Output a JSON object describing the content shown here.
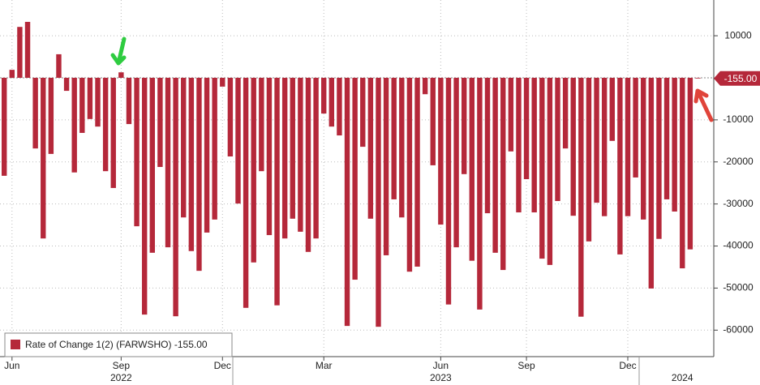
{
  "chart_data": {
    "type": "bar",
    "categories": [
      null,
      "Jun",
      null,
      null,
      null,
      null,
      null,
      null,
      null,
      null,
      null,
      null,
      null,
      null,
      null,
      "Sep",
      null,
      null,
      null,
      null,
      null,
      null,
      null,
      null,
      null,
      null,
      null,
      null,
      "Dec",
      null,
      null,
      null,
      null,
      null,
      null,
      null,
      null,
      null,
      null,
      null,
      null,
      "Mar",
      null,
      null,
      null,
      null,
      null,
      null,
      null,
      null,
      null,
      null,
      null,
      null,
      null,
      null,
      "Jun",
      null,
      null,
      null,
      null,
      null,
      null,
      null,
      null,
      null,
      null,
      "Sep",
      null,
      null,
      null,
      null,
      null,
      null,
      null,
      null,
      null,
      null,
      null,
      null,
      "Dec",
      null,
      null,
      null,
      null,
      null,
      null,
      null,
      null,
      null
    ],
    "year_labels": [
      {
        "label": "2022",
        "category": 15
      },
      {
        "label": "2023",
        "category": 56
      },
      {
        "label": "2024",
        "category": 87
      }
    ],
    "series": [
      {
        "name": "Rate of Change 1(2) (FARWSHO) -155.00",
        "color": "#b5283a",
        "values": [
          -23300,
          1900,
          12100,
          13300,
          -16800,
          -38200,
          -18100,
          5600,
          -3100,
          -22500,
          -13100,
          -9800,
          -11600,
          -22200,
          -26200,
          1300,
          -11000,
          -35300,
          -56300,
          -41600,
          -21200,
          -40300,
          -56700,
          -33200,
          -41200,
          -45900,
          -36800,
          -33700,
          -2100,
          -18700,
          -29900,
          -54700,
          -43900,
          -22200,
          -37400,
          -54100,
          -38200,
          -33500,
          -36600,
          -41400,
          -38200,
          -8500,
          -11600,
          -13700,
          -59000,
          -48000,
          -16400,
          -33500,
          -59200,
          -42200,
          -28900,
          -33200,
          -46100,
          -44900,
          -3900,
          -20800,
          -34900,
          -53900,
          -40300,
          -22900,
          -43500,
          -55100,
          -32200,
          -41600,
          -45700,
          -17500,
          -32000,
          -24100,
          -32000,
          -43000,
          -44500,
          -29300,
          -16800,
          -32800,
          -56800,
          -38900,
          -29700,
          -32900,
          -15000,
          -42000,
          -32900,
          -23700,
          -33700,
          -50100,
          -38300,
          -28900,
          -31800,
          -45300,
          -40800,
          -155
        ],
        "value_labels": [
          null,
          null,
          null,
          null,
          null,
          null,
          null,
          null,
          null,
          null,
          null,
          null,
          null,
          null,
          null,
          null,
          null,
          null,
          null,
          null,
          null,
          null,
          null,
          null,
          null,
          null,
          null,
          null,
          null,
          null,
          null,
          null,
          null,
          null,
          null,
          null,
          null,
          null,
          null,
          null,
          null,
          null,
          null,
          null,
          null,
          null,
          null,
          null,
          null,
          null,
          null,
          null,
          null,
          null,
          null,
          null,
          null,
          null,
          null,
          null,
          null,
          null,
          null,
          null,
          null,
          null,
          null,
          null,
          null,
          null,
          null,
          null,
          null,
          null,
          null,
          null,
          null,
          null,
          null,
          null,
          null,
          null,
          null,
          null,
          null,
          null,
          null,
          null,
          null,
          "-155.00"
        ]
      }
    ],
    "ylim": [
      -66300,
      18500
    ],
    "yticks": [
      10000,
      -10000,
      -20000,
      -30000,
      -40000,
      -50000,
      -60000
    ],
    "grid": true
  }
}
